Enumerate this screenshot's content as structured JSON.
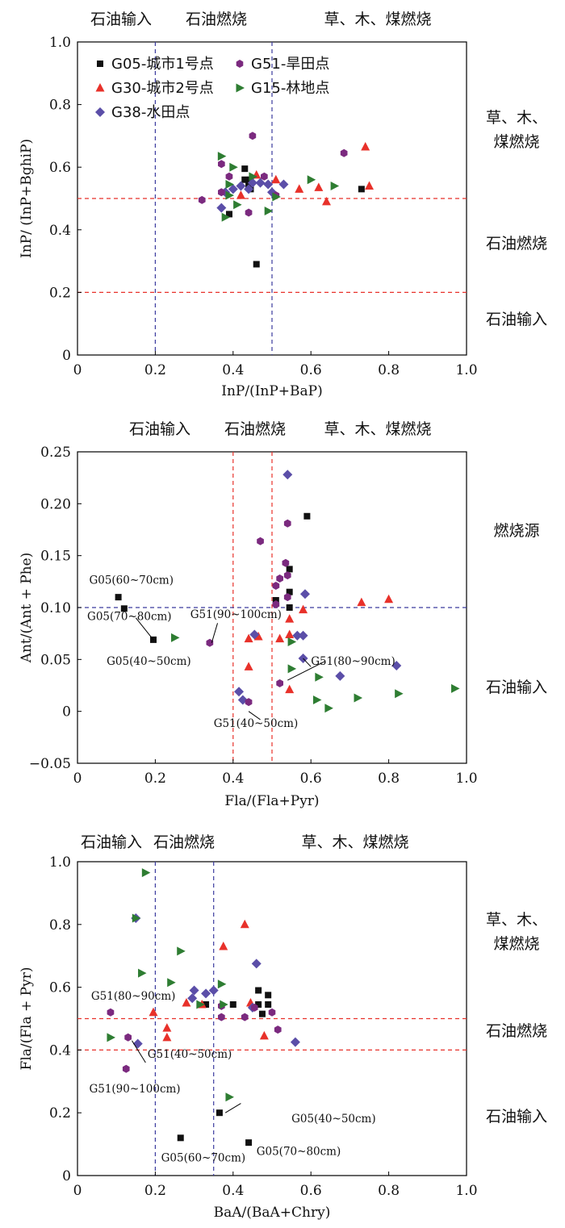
{
  "legend": [
    {
      "label": "G05-城市1号点",
      "marker": "square",
      "color": "#111111"
    },
    {
      "label": "G51-旱田点",
      "marker": "hexagon",
      "color": "#7b2a7f"
    },
    {
      "label": "G30-城市2号点",
      "marker": "triangle-up",
      "color": "#e8312a"
    },
    {
      "label": "G15-林地点",
      "marker": "triangle-right",
      "color": "#2e7d32"
    },
    {
      "label": "G38-水田点",
      "marker": "diamond",
      "color": "#5b4ea8"
    }
  ],
  "chart_data": [
    {
      "type": "scatter",
      "xlabel": "InP/(InP+BaP)",
      "ylabel": "InP/ (InP+BghiP)",
      "xlim": [
        0,
        1.0
      ],
      "ylim": [
        0,
        1.0
      ],
      "xticks": [
        "0",
        "0.2",
        "0.4",
        "0.6",
        "0.8",
        "1.0"
      ],
      "yticks": [
        "0",
        "0.2",
        "0.4",
        "0.6",
        "0.8",
        "1.0"
      ],
      "top_zone_labels": [
        "石油输入",
        "石油燃烧",
        "草、木、煤燃烧"
      ],
      "right_zone_labels": [
        "草、木、\n煤燃烧",
        "石油燃烧",
        "石油输入"
      ],
      "vlines": [
        {
          "x": 0.2,
          "color": "#3b3b9e"
        },
        {
          "x": 0.5,
          "color": "#3b3b9e"
        }
      ],
      "hlines": [
        {
          "y": 0.5,
          "color": "#e8312a"
        },
        {
          "y": 0.2,
          "color": "#e8312a"
        }
      ],
      "legend_shown": true,
      "series": [
        {
          "name": "G05-城市1号点",
          "points": [
            [
              0.43,
              0.595
            ],
            [
              0.43,
              0.56
            ],
            [
              0.44,
              0.545
            ],
            [
              0.445,
              0.53
            ],
            [
              0.39,
              0.45
            ],
            [
              0.46,
              0.29
            ],
            [
              0.73,
              0.53
            ],
            [
              0.445,
              0.56
            ]
          ]
        },
        {
          "name": "G30-城市2号点",
          "points": [
            [
              0.74,
              0.665
            ],
            [
              0.75,
              0.54
            ],
            [
              0.62,
              0.535
            ],
            [
              0.64,
              0.49
            ],
            [
              0.57,
              0.53
            ],
            [
              0.51,
              0.56
            ],
            [
              0.42,
              0.51
            ],
            [
              0.46,
              0.575
            ]
          ]
        },
        {
          "name": "G38-水田点",
          "points": [
            [
              0.37,
              0.47
            ],
            [
              0.38,
              0.52
            ],
            [
              0.4,
              0.53
            ],
            [
              0.44,
              0.53
            ],
            [
              0.45,
              0.55
            ],
            [
              0.47,
              0.55
            ],
            [
              0.49,
              0.545
            ],
            [
              0.53,
              0.545
            ],
            [
              0.5,
              0.52
            ],
            [
              0.42,
              0.54
            ]
          ]
        },
        {
          "name": "G51-旱田点",
          "points": [
            [
              0.45,
              0.7
            ],
            [
              0.685,
              0.645
            ],
            [
              0.32,
              0.495
            ],
            [
              0.37,
              0.61
            ],
            [
              0.39,
              0.57
            ],
            [
              0.44,
              0.455
            ],
            [
              0.48,
              0.57
            ],
            [
              0.51,
              0.51
            ],
            [
              0.37,
              0.52
            ]
          ]
        },
        {
          "name": "G15-林地点",
          "points": [
            [
              0.37,
              0.635
            ],
            [
              0.4,
              0.6
            ],
            [
              0.38,
              0.44
            ],
            [
              0.39,
              0.51
            ],
            [
              0.41,
              0.48
            ],
            [
              0.45,
              0.57
            ],
            [
              0.49,
              0.46
            ],
            [
              0.51,
              0.505
            ],
            [
              0.6,
              0.56
            ],
            [
              0.66,
              0.54
            ],
            [
              0.39,
              0.545
            ]
          ]
        }
      ],
      "annotations": []
    },
    {
      "type": "scatter",
      "xlabel": "Fla/(Fla+Pyr)",
      "ylabel": "Ant/(Ant + Phe)",
      "xlim": [
        0,
        1.0
      ],
      "ylim": [
        -0.05,
        0.25
      ],
      "xticks": [
        "0",
        "0.2",
        "0.4",
        "0.6",
        "0.8",
        "1.0"
      ],
      "yticks": [
        "−0.05",
        "0",
        "0.05",
        "0.10",
        "0.15",
        "0.20",
        "0.25"
      ],
      "top_zone_labels": [
        "石油输入",
        "石油燃烧",
        "草、木、煤燃烧"
      ],
      "right_zone_labels": [
        "燃烧源",
        "石油输入"
      ],
      "vlines": [
        {
          "x": 0.4,
          "color": "#e8312a"
        },
        {
          "x": 0.5,
          "color": "#e8312a"
        }
      ],
      "hlines": [
        {
          "y": 0.1,
          "color": "#3b3b9e"
        }
      ],
      "legend_shown": false,
      "series": [
        {
          "name": "G05-城市1号点",
          "points": [
            [
              0.105,
              0.11
            ],
            [
              0.12,
              0.099
            ],
            [
              0.195,
              0.069
            ],
            [
              0.59,
              0.188
            ],
            [
              0.545,
              0.137
            ],
            [
              0.545,
              0.115
            ],
            [
              0.545,
              0.1
            ],
            [
              0.51,
              0.107
            ]
          ]
        },
        {
          "name": "G30-城市2号点",
          "points": [
            [
              0.73,
              0.105
            ],
            [
              0.8,
              0.108
            ],
            [
              0.58,
              0.098
            ],
            [
              0.545,
              0.089
            ],
            [
              0.545,
              0.074
            ],
            [
              0.52,
              0.07
            ],
            [
              0.465,
              0.072
            ],
            [
              0.44,
              0.07
            ],
            [
              0.44,
              0.043
            ],
            [
              0.545,
              0.021
            ]
          ]
        },
        {
          "name": "G38-水田点",
          "points": [
            [
              0.54,
              0.228
            ],
            [
              0.585,
              0.113
            ],
            [
              0.565,
              0.073
            ],
            [
              0.58,
              0.073
            ],
            [
              0.58,
              0.051
            ],
            [
              0.675,
              0.034
            ],
            [
              0.82,
              0.044
            ],
            [
              0.415,
              0.019
            ],
            [
              0.425,
              0.011
            ],
            [
              0.455,
              0.074
            ]
          ]
        },
        {
          "name": "G51-旱田点",
          "points": [
            [
              0.54,
              0.181
            ],
            [
              0.47,
              0.164
            ],
            [
              0.535,
              0.143
            ],
            [
              0.54,
              0.131
            ],
            [
              0.52,
              0.128
            ],
            [
              0.51,
              0.121
            ],
            [
              0.54,
              0.11
            ],
            [
              0.51,
              0.103
            ],
            [
              0.34,
              0.066
            ],
            [
              0.52,
              0.027
            ],
            [
              0.44,
              0.009
            ]
          ]
        },
        {
          "name": "G15-林地点",
          "points": [
            [
              0.25,
              0.071
            ],
            [
              0.55,
              0.067
            ],
            [
              0.55,
              0.041
            ],
            [
              0.62,
              0.033
            ],
            [
              0.615,
              0.011
            ],
            [
              0.645,
              0.003
            ],
            [
              0.72,
              0.013
            ],
            [
              0.825,
              0.017
            ],
            [
              0.97,
              0.022
            ]
          ]
        }
      ],
      "annotations": [
        {
          "text": "G05(60~70cm)",
          "x": 0.03,
          "y": 0.123
        },
        {
          "text": "G05(70~80cm)",
          "x": 0.025,
          "y": 0.088
        },
        {
          "text": "G05(40~50cm)",
          "x": 0.075,
          "y": 0.045
        },
        {
          "text": "G51(90~100cm)",
          "x": 0.29,
          "y": 0.09
        },
        {
          "text": "G51(80~90cm)",
          "x": 0.6,
          "y": 0.045
        },
        {
          "text": "G51(40~50cm)",
          "x": 0.35,
          "y": -0.015
        }
      ]
    },
    {
      "type": "scatter",
      "xlabel": "BaA/(BaA+Chry)",
      "ylabel": "Fla/(Fla + Pyr)",
      "xlim": [
        0,
        1.0
      ],
      "ylim": [
        0,
        1.0
      ],
      "xticks": [
        "0",
        "0.2",
        "0.4",
        "0.6",
        "0.8",
        "1.0"
      ],
      "yticks": [
        "0",
        "0.2",
        "0.4",
        "0.6",
        "0.8",
        "1.0"
      ],
      "top_zone_labels": [
        "石油输入",
        "石油燃烧",
        "草、木、煤燃烧"
      ],
      "right_zone_labels": [
        "草、木、\n煤燃烧",
        "石油燃烧",
        "石油输入"
      ],
      "vlines": [
        {
          "x": 0.2,
          "color": "#3b3b9e"
        },
        {
          "x": 0.35,
          "color": "#3b3b9e"
        }
      ],
      "hlines": [
        {
          "y": 0.5,
          "color": "#e8312a"
        },
        {
          "y": 0.4,
          "color": "#e8312a"
        }
      ],
      "legend_shown": false,
      "series": [
        {
          "name": "G05-城市1号点",
          "points": [
            [
              0.465,
              0.59
            ],
            [
              0.49,
              0.575
            ],
            [
              0.49,
              0.545
            ],
            [
              0.465,
              0.545
            ],
            [
              0.475,
              0.515
            ],
            [
              0.4,
              0.545
            ],
            [
              0.33,
              0.545
            ],
            [
              0.365,
              0.2
            ],
            [
              0.265,
              0.12
            ],
            [
              0.44,
              0.105
            ]
          ]
        },
        {
          "name": "G30-城市2号点",
          "points": [
            [
              0.43,
              0.8
            ],
            [
              0.375,
              0.73
            ],
            [
              0.28,
              0.55
            ],
            [
              0.32,
              0.545
            ],
            [
              0.195,
              0.52
            ],
            [
              0.23,
              0.47
            ],
            [
              0.23,
              0.44
            ],
            [
              0.48,
              0.445
            ],
            [
              0.445,
              0.55
            ]
          ]
        },
        {
          "name": "G38-水田点",
          "points": [
            [
              0.46,
              0.675
            ],
            [
              0.3,
              0.59
            ],
            [
              0.33,
              0.58
            ],
            [
              0.35,
              0.59
            ],
            [
              0.15,
              0.82
            ],
            [
              0.295,
              0.565
            ],
            [
              0.45,
              0.535
            ],
            [
              0.56,
              0.425
            ],
            [
              0.155,
              0.42
            ]
          ]
        },
        {
          "name": "G51-旱田点",
          "points": [
            [
              0.085,
              0.52
            ],
            [
              0.13,
              0.44
            ],
            [
              0.125,
              0.34
            ],
            [
              0.37,
              0.54
            ],
            [
              0.37,
              0.505
            ],
            [
              0.43,
              0.505
            ],
            [
              0.455,
              0.535
            ],
            [
              0.5,
              0.52
            ],
            [
              0.515,
              0.465
            ]
          ]
        },
        {
          "name": "G15-林地点",
          "points": [
            [
              0.175,
              0.965
            ],
            [
              0.15,
              0.82
            ],
            [
              0.265,
              0.715
            ],
            [
              0.165,
              0.645
            ],
            [
              0.24,
              0.615
            ],
            [
              0.37,
              0.61
            ],
            [
              0.085,
              0.44
            ],
            [
              0.315,
              0.545
            ],
            [
              0.375,
              0.545
            ],
            [
              0.39,
              0.25
            ]
          ]
        }
      ],
      "annotations": [
        {
          "text": "G51(80~90cm)",
          "x": 0.035,
          "y": 0.56
        },
        {
          "text": "G51(40~50cm)",
          "x": 0.18,
          "y": 0.375
        },
        {
          "text": "G51(90~100cm)",
          "x": 0.03,
          "y": 0.265
        },
        {
          "text": "G05(40~50cm)",
          "x": 0.55,
          "y": 0.17
        },
        {
          "text": "G05(60~70cm)",
          "x": 0.215,
          "y": 0.045
        },
        {
          "text": "G05(70~80cm)",
          "x": 0.46,
          "y": 0.065
        }
      ]
    }
  ]
}
